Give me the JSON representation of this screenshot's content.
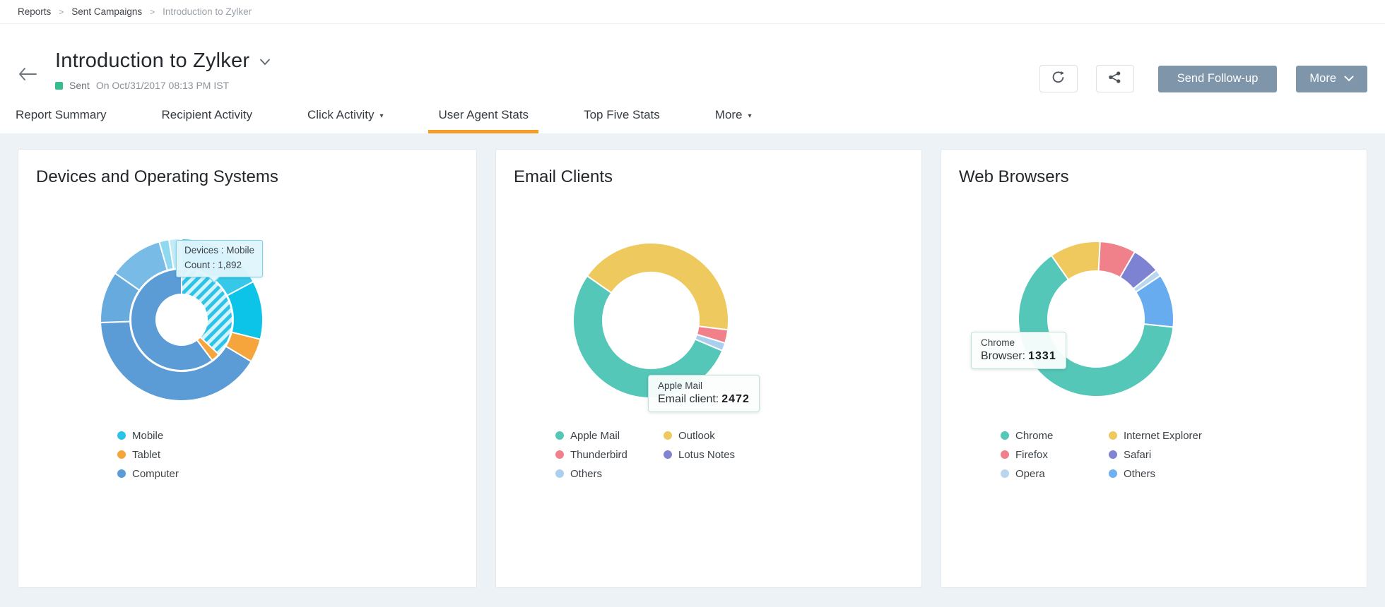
{
  "breadcrumb": {
    "separator": ">",
    "items": [
      {
        "label": "Reports",
        "current": false
      },
      {
        "label": "Sent Campaigns",
        "current": false
      },
      {
        "label": "Introduction to Zylker",
        "current": true
      }
    ]
  },
  "header": {
    "title": "Introduction to Zylker",
    "status": {
      "label": "Sent",
      "detail": "On Oct/31/2017 08:13 PM IST",
      "color": "#35bd8d"
    },
    "actions": {
      "refresh_icon": "refresh-icon",
      "share_icon": "share-icon",
      "send_followup_label": "Send Follow-up",
      "more_label": "More"
    }
  },
  "tabs": [
    {
      "label": "Report Summary",
      "caret": false,
      "active": false
    },
    {
      "label": "Recipient Activity",
      "caret": false,
      "active": false
    },
    {
      "label": "Click Activity",
      "caret": true,
      "active": false
    },
    {
      "label": "User Agent Stats",
      "caret": false,
      "active": true
    },
    {
      "label": "Top Five Stats",
      "caret": false,
      "active": false
    },
    {
      "label": "More",
      "caret": true,
      "active": false
    }
  ],
  "colors": {
    "accent_orange": "#f59d28",
    "button_slate": "#7e95aa",
    "page_bg": "#edf2f7",
    "sent_green": "#35bd8d"
  },
  "chart_data": [
    {
      "type": "donut",
      "variant": "sunburst-two-rings",
      "title": "Devices and Operating Systems",
      "legend_position": "bottom",
      "rings": {
        "inner": [
          {
            "label": "Mobile",
            "color": "#2bc4e8",
            "start_deg": 0,
            "end_deg": 133,
            "hatched": true,
            "value": 1892
          },
          {
            "label": "Tablet",
            "color": "#f5a53c",
            "start_deg": 133,
            "end_deg": 143
          },
          {
            "label": "Computer",
            "color": "#5b9cd6",
            "start_deg": 143,
            "end_deg": 360
          }
        ],
        "outer": [
          {
            "label": "",
            "color": "#35c8e9",
            "start_deg": 0,
            "end_deg": 62
          },
          {
            "label": "",
            "color": "#0cc3e8",
            "start_deg": 62,
            "end_deg": 104
          },
          {
            "label": "",
            "color": "#f5a53c",
            "start_deg": 104,
            "end_deg": 121
          },
          {
            "label": "",
            "color": "#5b9cd6",
            "start_deg": 121,
            "end_deg": 268
          },
          {
            "label": "",
            "color": "#67aadd",
            "start_deg": 268,
            "end_deg": 305
          },
          {
            "label": "",
            "color": "#78bbe6",
            "start_deg": 305,
            "end_deg": 344
          },
          {
            "label": "",
            "color": "#8ed9f0",
            "start_deg": 344,
            "end_deg": 351
          },
          {
            "label": "",
            "color": "#c2eaf7",
            "start_deg": 351,
            "end_deg": 359
          }
        ]
      },
      "tooltip": {
        "line1": "Devices : Mobile",
        "line2": "Count : 1,892"
      },
      "legend": [
        {
          "label": "Mobile",
          "color": "#2bc4e8"
        },
        {
          "label": "Tablet",
          "color": "#f5a53c"
        },
        {
          "label": "Computer",
          "color": "#5b9cd6"
        }
      ]
    },
    {
      "type": "donut",
      "title": "Email Clients",
      "legend_position": "bottom",
      "rings": {
        "main": [
          {
            "label": "Outlook",
            "color": "#eec95e",
            "start_deg": -55,
            "end_deg": 97
          },
          {
            "label": "Thunderbird",
            "color": "#f0818b",
            "start_deg": 97,
            "end_deg": 107
          },
          {
            "label": "Others",
            "color": "#a9ceee",
            "start_deg": 107,
            "end_deg": 113
          },
          {
            "label": "Apple Mail",
            "color": "#54c7b8",
            "start_deg": 113,
            "end_deg": 305,
            "value": 2472
          }
        ]
      },
      "tooltip": {
        "line1": "Apple Mail",
        "line2_label": "Email client:",
        "line2_value": "2472"
      },
      "legend": [
        {
          "label": "Apple Mail",
          "color": "#54c7b8"
        },
        {
          "label": "Outlook",
          "color": "#eec95e"
        },
        {
          "label": "Thunderbird",
          "color": "#f0818b"
        },
        {
          "label": "Lotus Notes",
          "color": "#8184d0"
        },
        {
          "label": "Others",
          "color": "#abcfee"
        }
      ]
    },
    {
      "type": "donut",
      "title": "Web Browsers",
      "legend_position": "bottom",
      "rings": {
        "main": [
          {
            "label": "Firefox",
            "color": "#f0818b",
            "start_deg": 3,
            "end_deg": 30
          },
          {
            "label": "Safari",
            "color": "#7e82d2",
            "start_deg": 30,
            "end_deg": 51
          },
          {
            "label": "Opera",
            "color": "#b9d8ef",
            "start_deg": 51,
            "end_deg": 56
          },
          {
            "label": "Others",
            "color": "#68acf0",
            "start_deg": 56,
            "end_deg": 96
          },
          {
            "label": "Chrome",
            "color": "#54c7b8",
            "start_deg": 96,
            "end_deg": 325,
            "value": 1331
          },
          {
            "label": "Internet Explorer",
            "color": "#efc95d",
            "start_deg": 325,
            "end_deg": 363
          }
        ]
      },
      "tooltip": {
        "line1": "Chrome",
        "line2_label": "Browser:",
        "line2_value": "1331"
      },
      "legend": [
        {
          "label": "Chrome",
          "color": "#54c7b8"
        },
        {
          "label": "Internet Explorer",
          "color": "#eec95e"
        },
        {
          "label": "Firefox",
          "color": "#f0818b"
        },
        {
          "label": "Safari",
          "color": "#8184d0"
        },
        {
          "label": "Opera",
          "color": "#b9d6ee"
        },
        {
          "label": "Others",
          "color": "#6db1f3"
        }
      ]
    }
  ]
}
